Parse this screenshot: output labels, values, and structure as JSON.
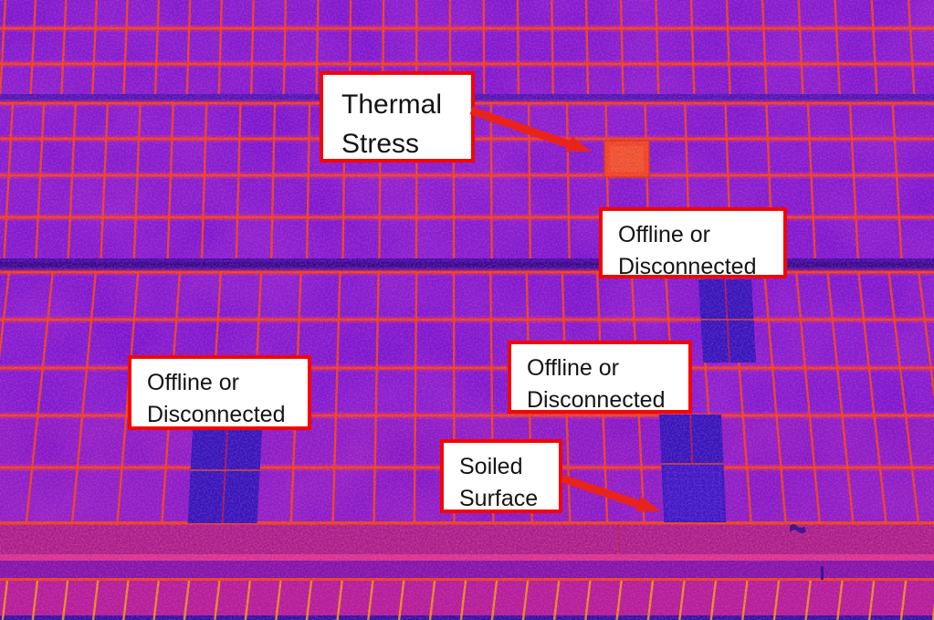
{
  "image": {
    "description": "Aerial thermal infrared view of solar panel arrays"
  },
  "palette": {
    "panel_purple": "#7a15cf",
    "panel_magenta_noise": "#ff2f9e",
    "panel_blue_noise": "#1b04a8",
    "blotch_pink": "#e0249b",
    "line_orange": "#ff4a00",
    "line_yellow": "#ffa200",
    "gap_indigo_light": "#4a14b2",
    "gap_indigo": "#3b0a9e",
    "gap_indigo_dark": "#2c0684",
    "ground_pink": "#a81880",
    "ground_streak_pink": "#ff3f86",
    "ground_lower_purple": "#7d11a8",
    "bottom_row_magenta": "#bb1d92",
    "bottom_edge_blue": "#2f0e9c",
    "hot_panel_orange": "#ff4a0d",
    "hot_panel_core": "#ff6a1f",
    "offline_panel_blue": "#2a14b8",
    "soiled_panel_blue": "#3317c4"
  },
  "annotations": {
    "box_background": "#ffffff",
    "box_border_color": "#f50500",
    "text_color": "#141414",
    "arrow_color": "#e8231c",
    "labels": [
      {
        "id": "thermal-stress",
        "lines": [
          "Thermal",
          "Stress"
        ]
      },
      {
        "id": "offline-top-right",
        "lines": [
          "Offline or",
          "Disconnected"
        ]
      },
      {
        "id": "offline-left",
        "lines": [
          "Offline or",
          "Disconnected"
        ]
      },
      {
        "id": "offline-middle",
        "lines": [
          "Offline or",
          "Disconnected"
        ]
      },
      {
        "id": "soiled-surface",
        "lines": [
          "Soiled",
          "Surface"
        ]
      }
    ]
  }
}
